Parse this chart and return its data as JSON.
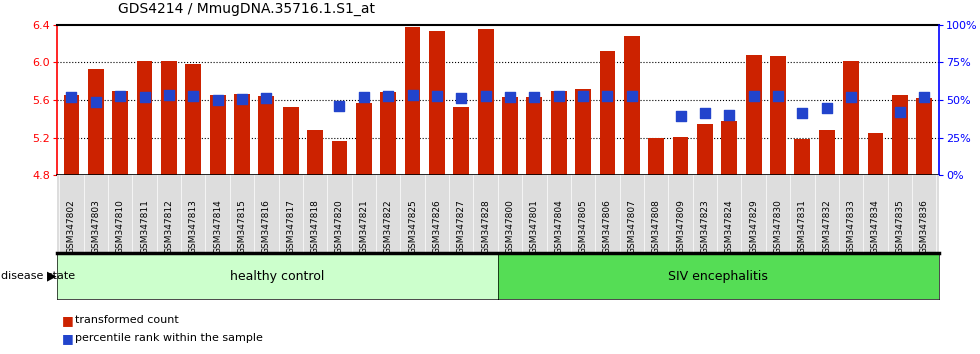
{
  "title": "GDS4214 / MmugDNA.35716.1.S1_at",
  "samples": [
    "GSM347802",
    "GSM347803",
    "GSM347810",
    "GSM347811",
    "GSM347812",
    "GSM347813",
    "GSM347814",
    "GSM347815",
    "GSM347816",
    "GSM347817",
    "GSM347818",
    "GSM347820",
    "GSM347821",
    "GSM347822",
    "GSM347825",
    "GSM347826",
    "GSM347827",
    "GSM347828",
    "GSM347800",
    "GSM347801",
    "GSM347804",
    "GSM347805",
    "GSM347806",
    "GSM347807",
    "GSM347808",
    "GSM347809",
    "GSM347823",
    "GSM347824",
    "GSM347829",
    "GSM347830",
    "GSM347831",
    "GSM347832",
    "GSM347833",
    "GSM347834",
    "GSM347835",
    "GSM347836"
  ],
  "bar_values": [
    5.65,
    5.93,
    5.7,
    6.02,
    6.01,
    5.98,
    5.65,
    5.66,
    5.64,
    5.53,
    5.28,
    5.16,
    5.57,
    5.68,
    6.38,
    6.33,
    5.53,
    6.35,
    5.63,
    5.63,
    5.7,
    5.72,
    6.12,
    6.28,
    5.2,
    5.21,
    5.35,
    5.38,
    6.08,
    6.07,
    5.18,
    5.28,
    6.02,
    5.25,
    5.65,
    5.62
  ],
  "percentile_values": [
    5.635,
    5.58,
    5.645,
    5.635,
    5.655,
    5.645,
    5.6,
    5.615,
    5.625,
    null,
    null,
    5.535,
    5.635,
    5.645,
    5.655,
    5.645,
    5.625,
    5.645,
    5.635,
    5.635,
    5.645,
    5.645,
    5.645,
    5.645,
    null,
    5.43,
    5.46,
    5.44,
    5.645,
    5.645,
    5.46,
    5.51,
    5.635,
    null,
    5.47,
    5.635
  ],
  "group1_label": "healthy control",
  "group2_label": "SIV encephalitis",
  "group1_count": 18,
  "group2_count": 18,
  "bar_color": "#cc2200",
  "dot_color": "#2244cc",
  "bar_width": 0.65,
  "ymin": 4.8,
  "ymax": 6.4,
  "y_ticks": [
    4.8,
    5.2,
    5.6,
    6.0,
    6.4
  ],
  "right_y_ticks": [
    0,
    25,
    50,
    75,
    100
  ],
  "right_y_labels": [
    "0%",
    "25%",
    "50%",
    "75%",
    "100%"
  ],
  "bg_color": "#ffffff",
  "legend_items": [
    "transformed count",
    "percentile rank within the sample"
  ],
  "disease_state_label": "disease state",
  "group1_bg": "#ccffcc",
  "group2_bg": "#55dd55",
  "xtick_bg": "#dddddd"
}
